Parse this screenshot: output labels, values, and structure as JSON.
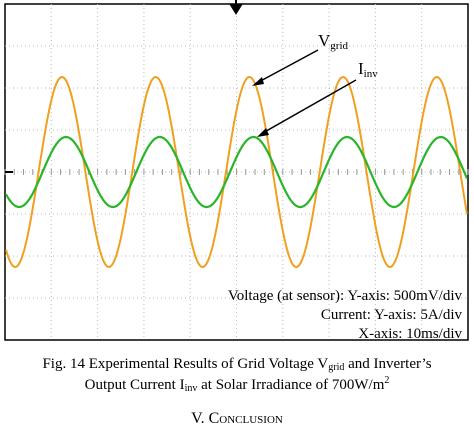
{
  "figure": {
    "labels": {
      "vgrid": [
        "V",
        "grid"
      ],
      "iinv": [
        "I",
        "inv"
      ]
    },
    "notes": [
      "Voltage (at sensor): Y-axis: 500mV/div",
      "Current: Y-axis: 5A/div",
      "X-axis: 10ms/div"
    ]
  },
  "caption": {
    "line1": [
      "Fig. 14 Experimental Results of Grid Voltage V",
      "grid",
      " and Inverter’s"
    ],
    "line2": [
      "Output Current I",
      "inv",
      " at Solar Irradiance of 700W/m",
      "2"
    ]
  },
  "section": {
    "heading": "V. Conclusion"
  }
}
